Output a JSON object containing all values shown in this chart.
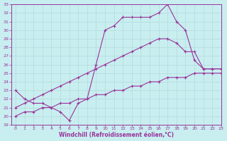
{
  "xlabel": "Windchill (Refroidissement éolien,°C)",
  "x_ticks": [
    0,
    1,
    2,
    3,
    4,
    5,
    6,
    7,
    8,
    9,
    10,
    11,
    12,
    13,
    14,
    15,
    16,
    17,
    18,
    19,
    20,
    21,
    22,
    23
  ],
  "ylim": [
    19,
    33
  ],
  "xlim": [
    -0.5,
    23
  ],
  "background_color": "#c8eef0",
  "line_color": "#993399",
  "grid_color": "#b8dde0",
  "line1_x": [
    0,
    1,
    2,
    3,
    4,
    5,
    6,
    7,
    8,
    9,
    10,
    11,
    12,
    13,
    14,
    15,
    16,
    17,
    18,
    19,
    20,
    21,
    22,
    23
  ],
  "line1_y": [
    23.0,
    22.0,
    21.5,
    21.5,
    21.0,
    20.5,
    19.5,
    21.5,
    22.0,
    26.0,
    30.0,
    30.5,
    31.5,
    31.5,
    31.5,
    31.5,
    32.0,
    33.0,
    31.0,
    30.0,
    26.5,
    25.5,
    25.5,
    25.5
  ],
  "line2_x": [
    0,
    1,
    2,
    3,
    4,
    5,
    6,
    7,
    8,
    9,
    10,
    11,
    12,
    13,
    14,
    15,
    16,
    17,
    18,
    19,
    20,
    21,
    22,
    23
  ],
  "line2_y": [
    21.0,
    21.5,
    22.0,
    22.5,
    23.0,
    23.5,
    24.0,
    24.5,
    25.0,
    25.5,
    26.0,
    26.5,
    27.0,
    27.5,
    28.0,
    28.5,
    29.0,
    29.0,
    28.5,
    27.5,
    27.5,
    25.5,
    25.5,
    25.5
  ],
  "line3_x": [
    0,
    1,
    2,
    3,
    4,
    5,
    6,
    7,
    8,
    9,
    10,
    11,
    12,
    13,
    14,
    15,
    16,
    17,
    18,
    19,
    20,
    21,
    22,
    23
  ],
  "line3_y": [
    20.0,
    20.5,
    20.5,
    21.0,
    21.0,
    21.5,
    21.5,
    22.0,
    22.0,
    22.5,
    22.5,
    23.0,
    23.0,
    23.5,
    23.5,
    24.0,
    24.0,
    24.5,
    24.5,
    24.5,
    25.0,
    25.0,
    25.0,
    25.0
  ],
  "yticks": [
    19,
    20,
    21,
    22,
    23,
    24,
    25,
    26,
    27,
    28,
    29,
    30,
    31,
    32,
    33
  ]
}
